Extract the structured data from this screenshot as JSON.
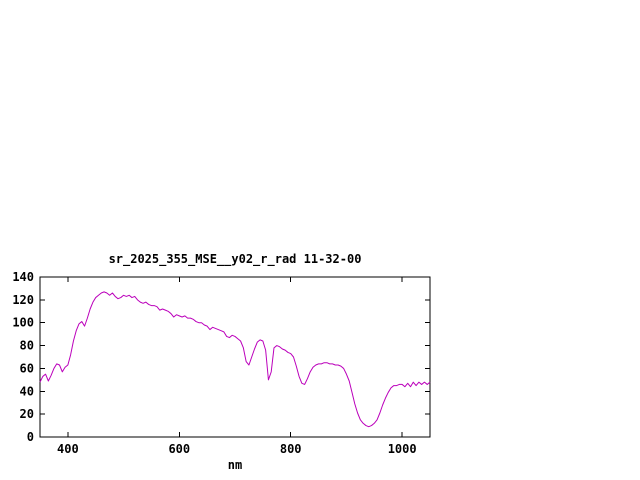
{
  "window": {
    "background": "#ffffff"
  },
  "chart_data": {
    "type": "line",
    "title": "sr_2025_355_MSE__y02_r_rad 11-32-00",
    "xlabel": "nm",
    "ylabel": "",
    "xlim": [
      350,
      1050
    ],
    "ylim": [
      0,
      140
    ],
    "xticks": [
      400,
      600,
      800,
      1000
    ],
    "yticks": [
      0,
      20,
      40,
      60,
      80,
      100,
      120,
      140
    ],
    "grid": false,
    "legend_position": "none",
    "line_color": "#BB00BB",
    "axis_color": "#000000",
    "series": [
      {
        "name": "sr_2025_355_MSE__y02_r_rad",
        "points": [
          [
            350,
            48
          ],
          [
            355,
            53
          ],
          [
            360,
            55
          ],
          [
            365,
            49
          ],
          [
            370,
            54
          ],
          [
            375,
            60
          ],
          [
            380,
            64
          ],
          [
            385,
            63
          ],
          [
            390,
            57
          ],
          [
            395,
            61
          ],
          [
            400,
            63
          ],
          [
            405,
            72
          ],
          [
            410,
            84
          ],
          [
            415,
            93
          ],
          [
            420,
            99
          ],
          [
            425,
            101
          ],
          [
            430,
            97
          ],
          [
            435,
            104
          ],
          [
            440,
            112
          ],
          [
            445,
            118
          ],
          [
            450,
            122
          ],
          [
            455,
            124
          ],
          [
            460,
            126
          ],
          [
            465,
            127
          ],
          [
            470,
            126
          ],
          [
            475,
            124
          ],
          [
            480,
            126
          ],
          [
            485,
            123
          ],
          [
            490,
            121
          ],
          [
            495,
            122
          ],
          [
            500,
            124
          ],
          [
            505,
            123
          ],
          [
            510,
            124
          ],
          [
            515,
            122
          ],
          [
            520,
            123
          ],
          [
            525,
            120
          ],
          [
            530,
            118
          ],
          [
            535,
            117
          ],
          [
            540,
            118
          ],
          [
            545,
            116
          ],
          [
            550,
            115
          ],
          [
            555,
            115
          ],
          [
            560,
            114
          ],
          [
            565,
            111
          ],
          [
            570,
            112
          ],
          [
            575,
            111
          ],
          [
            580,
            110
          ],
          [
            585,
            108
          ],
          [
            590,
            105
          ],
          [
            595,
            107
          ],
          [
            600,
            106
          ],
          [
            605,
            105
          ],
          [
            610,
            106
          ],
          [
            615,
            104
          ],
          [
            620,
            104
          ],
          [
            625,
            103
          ],
          [
            630,
            101
          ],
          [
            635,
            100
          ],
          [
            640,
            100
          ],
          [
            645,
            98
          ],
          [
            650,
            97
          ],
          [
            655,
            94
          ],
          [
            660,
            96
          ],
          [
            665,
            95
          ],
          [
            670,
            94
          ],
          [
            675,
            93
          ],
          [
            680,
            92
          ],
          [
            685,
            88
          ],
          [
            690,
            87
          ],
          [
            695,
            89
          ],
          [
            700,
            88
          ],
          [
            705,
            86
          ],
          [
            710,
            84
          ],
          [
            715,
            78
          ],
          [
            720,
            66
          ],
          [
            725,
            63
          ],
          [
            730,
            70
          ],
          [
            735,
            77
          ],
          [
            740,
            83
          ],
          [
            745,
            85
          ],
          [
            750,
            84
          ],
          [
            755,
            76
          ],
          [
            760,
            50
          ],
          [
            765,
            57
          ],
          [
            770,
            78
          ],
          [
            775,
            80
          ],
          [
            780,
            79
          ],
          [
            785,
            77
          ],
          [
            790,
            76
          ],
          [
            795,
            74
          ],
          [
            800,
            73
          ],
          [
            805,
            70
          ],
          [
            810,
            62
          ],
          [
            815,
            53
          ],
          [
            820,
            47
          ],
          [
            825,
            46
          ],
          [
            830,
            51
          ],
          [
            835,
            57
          ],
          [
            840,
            61
          ],
          [
            845,
            63
          ],
          [
            850,
            64
          ],
          [
            855,
            64
          ],
          [
            860,
            65
          ],
          [
            865,
            65
          ],
          [
            870,
            64
          ],
          [
            875,
            64
          ],
          [
            880,
            63
          ],
          [
            885,
            63
          ],
          [
            890,
            62
          ],
          [
            895,
            60
          ],
          [
            900,
            55
          ],
          [
            905,
            49
          ],
          [
            910,
            39
          ],
          [
            915,
            29
          ],
          [
            920,
            21
          ],
          [
            925,
            15
          ],
          [
            930,
            12
          ],
          [
            935,
            10
          ],
          [
            940,
            9
          ],
          [
            945,
            10
          ],
          [
            950,
            12
          ],
          [
            955,
            15
          ],
          [
            960,
            21
          ],
          [
            965,
            28
          ],
          [
            970,
            34
          ],
          [
            975,
            39
          ],
          [
            980,
            43
          ],
          [
            985,
            45
          ],
          [
            990,
            45
          ],
          [
            995,
            46
          ],
          [
            1000,
            46
          ],
          [
            1005,
            44
          ],
          [
            1010,
            47
          ],
          [
            1015,
            44
          ],
          [
            1020,
            48
          ],
          [
            1025,
            45
          ],
          [
            1030,
            48
          ],
          [
            1035,
            46
          ],
          [
            1040,
            48
          ],
          [
            1045,
            46
          ],
          [
            1050,
            48
          ]
        ]
      }
    ]
  }
}
